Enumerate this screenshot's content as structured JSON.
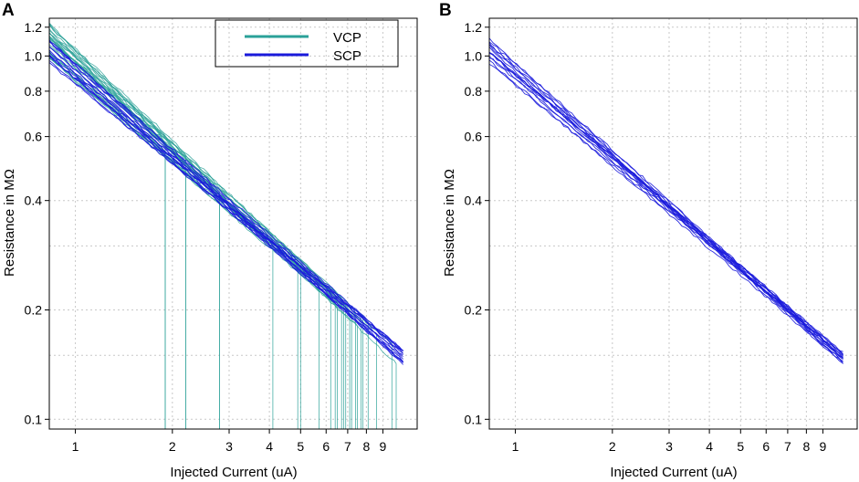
{
  "chart_data": [
    {
      "panel": "A",
      "type": "line",
      "xlabel": "Injected Current (uA)",
      "ylabel": "Resistance in MΩ",
      "x_scale": "log",
      "y_scale": "log",
      "xlim": [
        0.83,
        11.5
      ],
      "ylim": [
        0.094,
        1.27
      ],
      "x_ticks": [
        1,
        2,
        3,
        4,
        5,
        6,
        7,
        8,
        9
      ],
      "y_ticks": [
        0.1,
        0.2,
        0.4,
        0.6,
        0.8,
        1.0,
        1.2
      ],
      "y_tick_labels": [
        "0.1",
        "0.2",
        "0.4",
        "0.6",
        "0.8",
        "1.0",
        "1.2"
      ],
      "grid": true,
      "legend": {
        "placement": "top-center",
        "entries": [
          {
            "label": "VCP",
            "color": "#2aa198"
          },
          {
            "label": "SCP",
            "color": "#1a1adb"
          }
        ]
      },
      "series": [
        {
          "name": "VCP",
          "color": "#2aa198",
          "curve_count": 26,
          "start_resistance_range": [
            0.98,
            1.24
          ],
          "resistance_at_7uA_range": [
            0.18,
            0.205
          ],
          "dropout_currents": [
            1.9,
            2.2,
            2.8,
            4.1,
            4.9,
            5.0,
            5.7,
            6.2,
            6.4,
            6.5,
            6.7,
            6.8,
            6.9,
            7.1,
            7.2,
            7.4,
            7.5,
            7.7,
            7.8,
            8.1,
            8.6,
            9.6,
            9.9
          ]
        },
        {
          "name": "SCP",
          "color": "#1a1adb",
          "curve_count": 14,
          "start_resistance_range": [
            0.95,
            1.12
          ],
          "resistance_at_10uA_range": [
            0.14,
            0.16
          ],
          "end_current": 10.4
        }
      ]
    },
    {
      "panel": "B",
      "type": "line",
      "xlabel": "Injected Current (uA)",
      "ylabel": "Resistance in MΩ",
      "x_scale": "log",
      "y_scale": "log",
      "xlim": [
        0.83,
        11.5
      ],
      "ylim": [
        0.094,
        1.27
      ],
      "x_ticks": [
        1,
        2,
        3,
        4,
        5,
        6,
        7,
        8,
        9
      ],
      "y_ticks": [
        0.1,
        0.2,
        0.4,
        0.6,
        0.8,
        1.0,
        1.2
      ],
      "y_tick_labels": [
        "0.1",
        "0.2",
        "0.4",
        "0.6",
        "0.8",
        "1.0",
        "1.2"
      ],
      "grid": true,
      "series": [
        {
          "name": "SCP",
          "color": "#1a1adb",
          "curve_count": 14,
          "start_resistance_range": [
            0.95,
            1.12
          ],
          "resistance_at_10uA_range": [
            0.14,
            0.16
          ],
          "end_current": 10.4
        }
      ]
    }
  ]
}
